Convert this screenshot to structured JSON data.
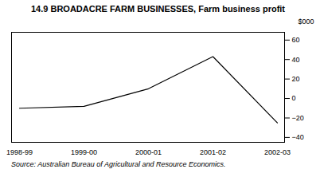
{
  "chart_data": {
    "type": "line",
    "title": "14.9   BROADACRE FARM BUSINESSES, Farm business profit",
    "categories": [
      "1998-99",
      "1999-00",
      "2000-01",
      "2001-02",
      "2002-03"
    ],
    "values": [
      -10,
      -8,
      10,
      43,
      -25
    ],
    "color": "#000000",
    "ylabel": "$000",
    "ylim": [
      -45,
      68
    ],
    "yticks": [
      -40,
      -20,
      0,
      20,
      40,
      60
    ],
    "grid": false,
    "source": "Source: Australian Bureau of Agricultural and Resource Economics."
  }
}
